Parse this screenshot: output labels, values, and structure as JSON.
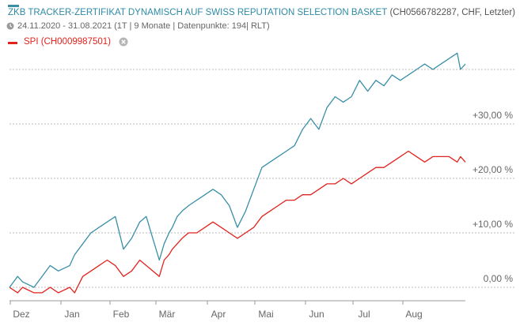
{
  "header": {
    "title": "ZKB TRACKER-ZERTIFIKAT DYNAMISCH AUF SWISS REPUTATION SELECTION BASKET",
    "meta": "(CH0566782287, CHF, Letzter)",
    "info": "24.11.2020 - 31.08.2021 (1T | 9 Monate | Datenpunkte: 194| RLT)",
    "compare_label": "SPI (CH0009987501)"
  },
  "colors": {
    "main": "#3a8fa8",
    "compare": "#e2221d",
    "grid": "#bbbbbb",
    "axis_text": "#666666"
  },
  "icons": {
    "clock": "clock-icon",
    "remove": "close-circle-icon"
  },
  "chart_data": {
    "type": "line",
    "title": "ZKB TRACKER-ZERTIFIKAT DYNAMISCH AUF SWISS REPUTATION SELECTION BASKET",
    "xlabel": "",
    "ylabel": "",
    "x_start": "2020-11-24",
    "x_end": "2021-08-31",
    "ylim": [
      -3,
      40
    ],
    "y_ticks": [
      0,
      10,
      20,
      30
    ],
    "y_tick_labels": [
      "0,00 %",
      "+10,00 %",
      "+20,00 %",
      "+30,00 %"
    ],
    "x_tick_labels": [
      "Dez",
      "Jan",
      "Feb",
      "Mär",
      "Apr",
      "Mai",
      "Jun",
      "Jul",
      "Aug"
    ],
    "grid": true,
    "x": [
      0,
      5,
      8,
      15,
      20,
      25,
      30,
      37,
      40,
      45,
      50,
      55,
      60,
      65,
      70,
      75,
      80,
      84,
      88,
      92,
      95,
      98,
      100,
      103,
      106,
      110,
      115,
      120,
      125,
      130,
      135,
      140,
      145,
      150,
      155,
      160,
      165,
      170,
      175,
      180,
      185,
      190,
      195,
      200,
      205,
      210,
      215,
      220,
      225,
      230,
      235,
      240,
      245,
      250,
      255,
      260,
      265,
      270,
      275,
      277,
      280
    ],
    "series": [
      {
        "name": "ZKB TRACKER-ZERTIFIKAT DYNAMISCH AUF SWISS REPUTATION SELECTION BASKET",
        "values": [
          0,
          2,
          1,
          0,
          2,
          4,
          3,
          4,
          6,
          8,
          10,
          11,
          12,
          13,
          7,
          9,
          12,
          13,
          9,
          5,
          8,
          10,
          11,
          13,
          14,
          15,
          16,
          17,
          18,
          17,
          15,
          11,
          14,
          18,
          22,
          23,
          24,
          25,
          26,
          29,
          31,
          29,
          33,
          35,
          34,
          35,
          38,
          36,
          38,
          37,
          39,
          38,
          39,
          40,
          41,
          40,
          41,
          42,
          43,
          40,
          41
        ]
      },
      {
        "name": "SPI (CH0009987501)",
        "values": [
          0,
          -1,
          0,
          -1,
          -1,
          0,
          -1,
          0,
          -1,
          2,
          3,
          4,
          5,
          4,
          2,
          3,
          5,
          4,
          3,
          2,
          5,
          6,
          7,
          8,
          9,
          10,
          10,
          11,
          12,
          11,
          10,
          9,
          10,
          11,
          13,
          14,
          15,
          16,
          16,
          17,
          17,
          18,
          19,
          19,
          20,
          19,
          20,
          21,
          22,
          22,
          23,
          24,
          25,
          24,
          23,
          24,
          24,
          24,
          23,
          24,
          23
        ]
      }
    ]
  }
}
